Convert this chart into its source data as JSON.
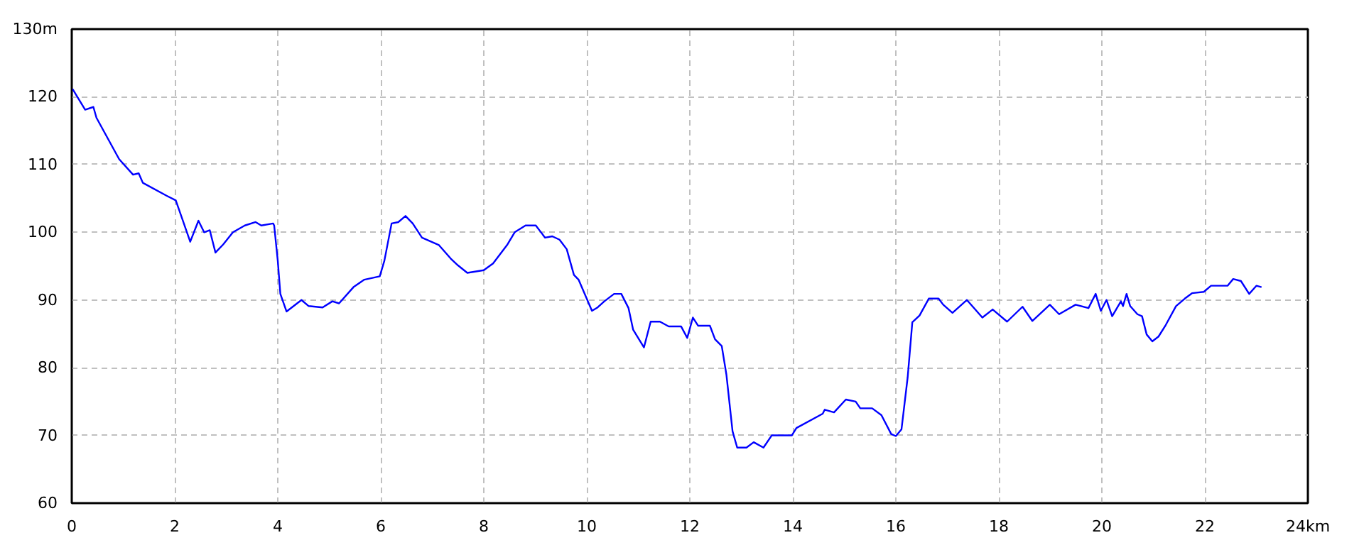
{
  "chart_data": {
    "type": "line",
    "x": [
      0,
      0.02,
      0.26,
      0.42,
      0.48,
      0.92,
      1.19,
      1.3,
      1.38,
      1.84,
      2.02,
      2.3,
      2.46,
      2.57,
      2.68,
      2.79,
      2.94,
      3.13,
      3.36,
      3.57,
      3.68,
      3.91,
      3.93,
      4.0,
      4.05,
      4.17,
      4.46,
      4.6,
      4.87,
      5.06,
      5.19,
      5.47,
      5.68,
      5.98,
      6.07,
      6.21,
      6.34,
      6.48,
      6.62,
      6.8,
      7.13,
      7.36,
      7.5,
      7.68,
      8.0,
      8.18,
      8.46,
      8.6,
      8.81,
      9.01,
      9.19,
      9.33,
      9.47,
      9.61,
      9.75,
      9.84,
      10.1,
      10.21,
      10.34,
      10.53,
      10.67,
      10.81,
      10.9,
      11.11,
      11.24,
      11.42,
      11.59,
      11.83,
      11.95,
      12.06,
      12.16,
      12.39,
      12.49,
      12.62,
      12.71,
      12.83,
      12.92,
      13.1,
      13.24,
      13.43,
      13.59,
      13.98,
      14.07,
      14.58,
      14.62,
      14.8,
      15.03,
      15.22,
      15.31,
      15.54,
      15.72,
      15.91,
      16.0,
      16.11,
      16.23,
      16.32,
      16.46,
      16.64,
      16.83,
      16.92,
      17.1,
      17.38,
      17.68,
      17.88,
      18.16,
      18.46,
      18.65,
      18.99,
      19.17,
      19.49,
      19.74,
      19.88,
      19.98,
      20.09,
      20.2,
      20.37,
      20.41,
      20.48,
      20.55,
      20.69,
      20.78,
      20.87,
      20.98,
      21.1,
      21.24,
      21.44,
      21.61,
      21.75,
      21.98,
      22.12,
      22.44,
      22.55,
      22.7,
      22.86,
      23.0,
      23.1
    ],
    "series": [
      {
        "color": "#0000ff",
        "values": [
          121,
          121.1,
          118.1,
          118.5,
          116.9,
          110.8,
          108.5,
          108.7,
          107.3,
          105.4,
          104.7,
          98.6,
          101.7,
          100,
          100.3,
          97.0,
          98.2,
          100,
          101.0,
          101.5,
          101.0,
          101.3,
          101.0,
          95.8,
          90.9,
          88.3,
          90,
          89.1,
          88.9,
          89.8,
          89.5,
          91.9,
          93.0,
          93.5,
          95.8,
          101.3,
          101.5,
          102.4,
          101.3,
          99.2,
          98.1,
          96.1,
          95.1,
          94.0,
          94.4,
          95.4,
          98.2,
          100,
          101.0,
          101.0,
          99.2,
          99.4,
          98.9,
          97.5,
          93.7,
          93.0,
          88.4,
          88.9,
          89.8,
          90.9,
          90.9,
          88.8,
          85.6,
          83.0,
          86.8,
          86.8,
          86.1,
          86.1,
          84.4,
          87.4,
          86.2,
          86.2,
          84.2,
          83.2,
          79.0,
          70.6,
          68.2,
          68.2,
          69.0,
          68.2,
          70.0,
          70.0,
          71.1,
          73.2,
          73.8,
          73.4,
          75.3,
          75.0,
          74.0,
          74.0,
          73.0,
          70.2,
          69.9,
          70.9,
          78.6,
          86.7,
          87.7,
          90.2,
          90.2,
          89.3,
          88.1,
          90.0,
          87.4,
          88.6,
          86.8,
          89.0,
          86.9,
          89.3,
          87.9,
          89.3,
          88.8,
          90.9,
          88.4,
          90.0,
          87.6,
          89.8,
          89.1,
          90.9,
          89.1,
          87.9,
          87.6,
          84.9,
          83.9,
          84.6,
          86.3,
          89.1,
          90.2,
          91.0,
          91.2,
          92.1,
          92.1,
          93.1,
          92.8,
          90.9,
          92.1,
          91.9
        ]
      }
    ],
    "xlim": [
      0,
      24
    ],
    "xticks": [
      0,
      2,
      4,
      6,
      8,
      10,
      12,
      14,
      16,
      18,
      20,
      22,
      {
        "value": 24,
        "label": "24km"
      }
    ],
    "ylim": [
      60,
      130
    ],
    "yticks": [
      60,
      70,
      80,
      90,
      100,
      110,
      120,
      {
        "value": 130,
        "label": "130m"
      }
    ],
    "grid": true
  }
}
